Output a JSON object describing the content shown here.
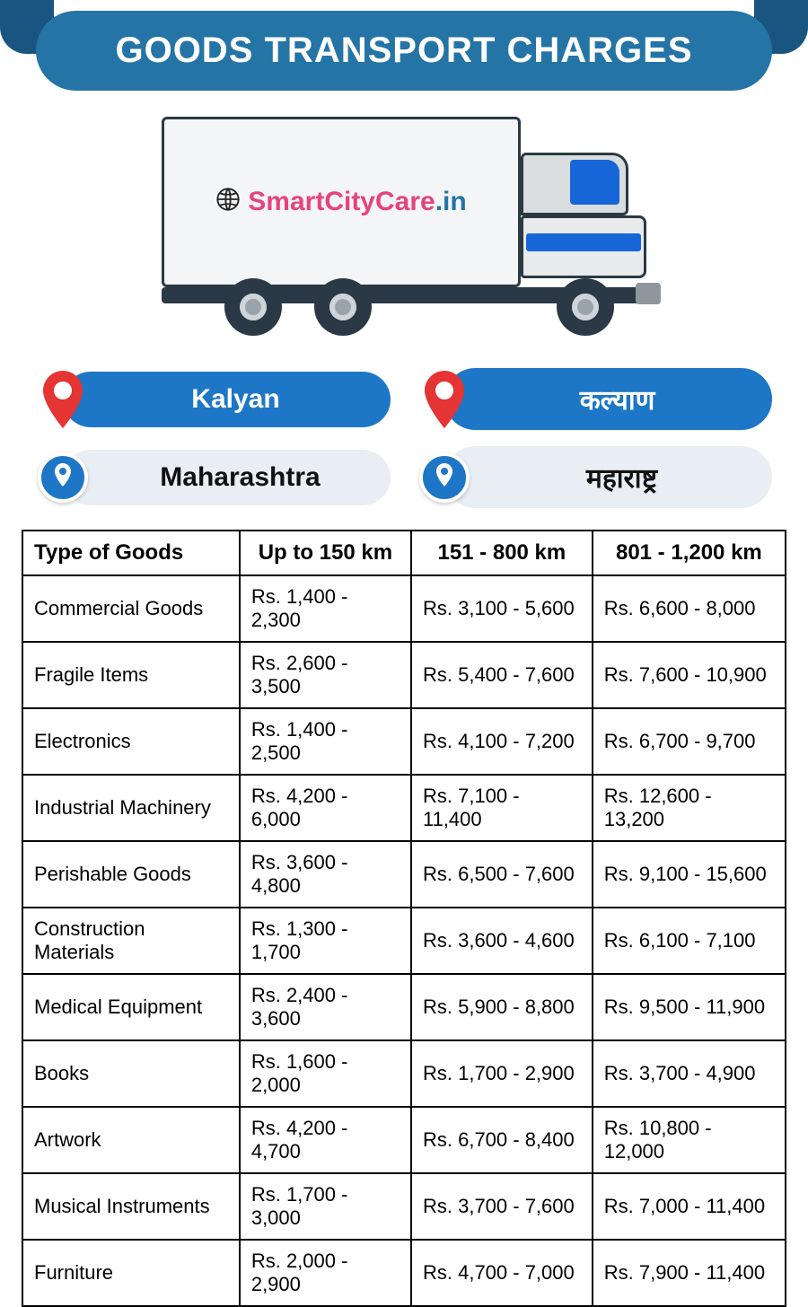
{
  "header": {
    "title": "GOODS TRANSPORT CHARGES"
  },
  "brand": {
    "part1": "SmartCityCare",
    "part2": ".in"
  },
  "colors": {
    "header_pill": "#2474a6",
    "header_corner": "#1a5480",
    "blue_pill": "#1d77c6",
    "light_pill": "#e9eef5",
    "brand_pink": "#e6437d",
    "brand_blue": "#2474a6",
    "pin_red": "#e53434",
    "table_border": "#000000"
  },
  "locations": {
    "city_en": "Kalyan",
    "city_local": "कल्याण",
    "state_en": "Maharashtra",
    "state_local": "महाराष्ट्र"
  },
  "table": {
    "columns": [
      "Type of Goods",
      "Up to 150 km",
      "151 - 800 km",
      "801 - 1,200 km"
    ],
    "rows": [
      [
        "Commercial Goods",
        "Rs. 1,400 - 2,300",
        "Rs. 3,100 - 5,600",
        "Rs. 6,600 - 8,000"
      ],
      [
        "Fragile Items",
        "Rs. 2,600 - 3,500",
        "Rs. 5,400 - 7,600",
        "Rs. 7,600 - 10,900"
      ],
      [
        "Electronics",
        "Rs. 1,400 - 2,500",
        "Rs. 4,100 - 7,200",
        "Rs. 6,700 - 9,700"
      ],
      [
        "Industrial Machinery",
        "Rs. 4,200 - 6,000",
        "Rs. 7,100 - 11,400",
        "Rs. 12,600 - 13,200"
      ],
      [
        "Perishable Goods",
        "Rs. 3,600 - 4,800",
        "Rs. 6,500 - 7,600",
        "Rs. 9,100 - 15,600"
      ],
      [
        "Construction Materials",
        "Rs. 1,300 - 1,700",
        "Rs. 3,600 - 4,600",
        "Rs. 6,100 - 7,100"
      ],
      [
        "Medical Equipment",
        "Rs. 2,400 - 3,600",
        "Rs. 5,900 - 8,800",
        "Rs. 9,500 - 11,900"
      ],
      [
        "Books",
        "Rs. 1,600 - 2,000",
        "Rs. 1,700 - 2,900",
        "Rs. 3,700 - 4,900"
      ],
      [
        "Artwork",
        "Rs. 4,200 - 4,700",
        "Rs. 6,700 - 8,400",
        "Rs. 10,800 - 12,000"
      ],
      [
        "Musical Instruments",
        "Rs. 1,700 - 3,000",
        "Rs. 3,700 - 7,600",
        "Rs. 7,000 - 11,400"
      ],
      [
        "Furniture",
        "Rs. 2,000 - 2,900",
        "Rs. 4,700 - 7,000",
        "Rs. 7,900 - 11,400"
      ]
    ]
  }
}
